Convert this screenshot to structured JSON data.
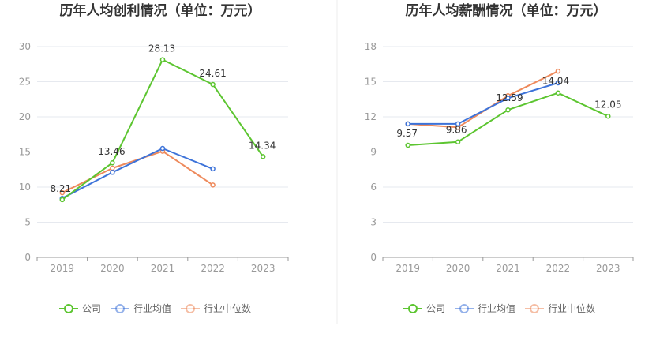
{
  "colors": {
    "company": "#5cc530",
    "industry_avg": "#3d73d9",
    "industry_median": "#ee8a5c",
    "grid": "#e6e9ef",
    "axis": "#999999",
    "divider": "#eeeeee"
  },
  "chart_data": [
    {
      "type": "line",
      "title": "历年人均创利情况（单位：万元）",
      "categories": [
        "2019",
        "2020",
        "2021",
        "2022",
        "2023"
      ],
      "ylim": [
        0,
        30
      ],
      "yticks": [
        0,
        5,
        10,
        15,
        20,
        25,
        30
      ],
      "grid": true,
      "legend_position": "bottom",
      "series": [
        {
          "name": "公司",
          "key": "company",
          "values": [
            8.21,
            13.46,
            28.13,
            24.61,
            14.34
          ],
          "labels": [
            "8.21",
            "13.46",
            "28.13",
            "24.61",
            "14.34"
          ]
        },
        {
          "name": "行业均值",
          "key": "industry_avg",
          "values": [
            8.4,
            12.1,
            15.5,
            12.6,
            null
          ]
        },
        {
          "name": "行业中位数",
          "key": "industry_median",
          "values": [
            9.2,
            12.7,
            15.1,
            10.3,
            null
          ]
        }
      ]
    },
    {
      "type": "line",
      "title": "历年人均薪酬情况（单位：万元）",
      "categories": [
        "2019",
        "2020",
        "2021",
        "2022",
        "2023"
      ],
      "ylim": [
        0,
        18
      ],
      "yticks": [
        0,
        3,
        6,
        9,
        12,
        15,
        18
      ],
      "grid": true,
      "legend_position": "bottom",
      "series": [
        {
          "name": "公司",
          "key": "company",
          "values": [
            9.57,
            9.86,
            12.59,
            14.04,
            12.05
          ],
          "labels": [
            "9.57",
            "9.86",
            "12.59",
            "14.04",
            "12.05"
          ]
        },
        {
          "name": "行业均值",
          "key": "industry_avg",
          "values": [
            11.4,
            11.4,
            13.6,
            14.9,
            null
          ]
        },
        {
          "name": "行业中位数",
          "key": "industry_median",
          "values": [
            11.4,
            11.1,
            13.8,
            15.9,
            null
          ]
        }
      ]
    }
  ]
}
